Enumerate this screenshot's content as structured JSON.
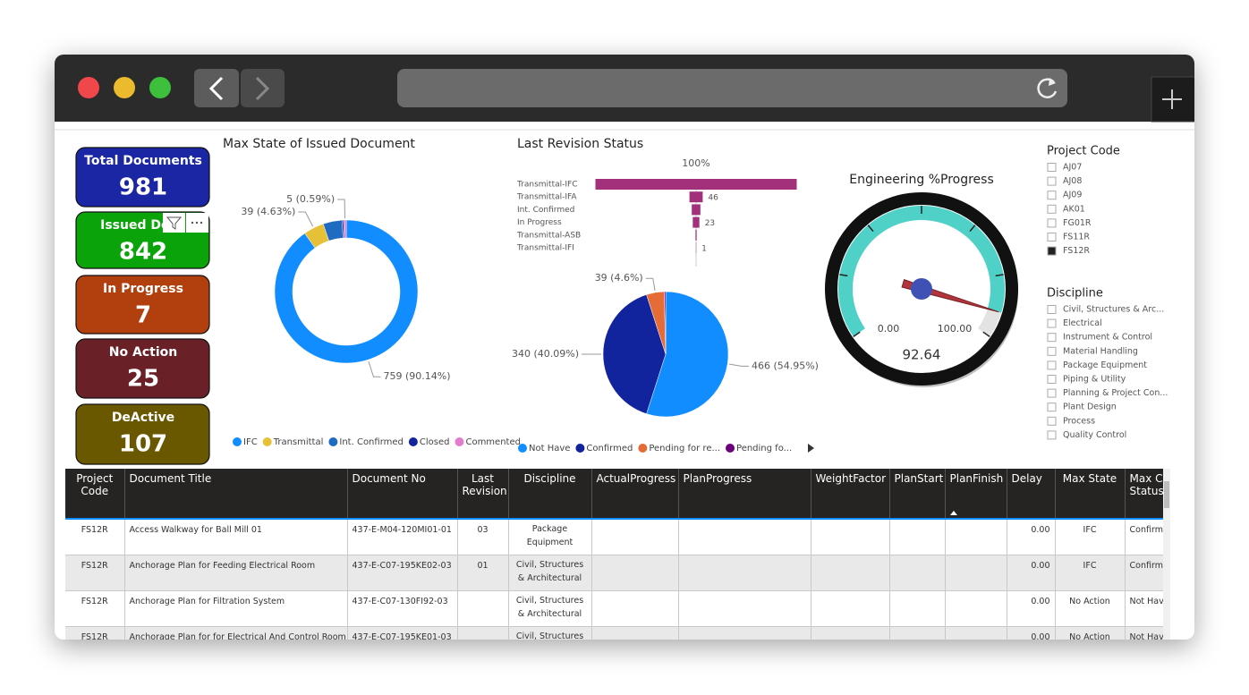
{
  "cards": [
    {
      "label": "Total Documents",
      "value": 981,
      "color": "#1a26a3"
    },
    {
      "label": "Issued Docu",
      "value": 842,
      "color": "#0aa40a"
    },
    {
      "label": "In Progress",
      "value": 7,
      "color": "#b23f0e"
    },
    {
      "label": "No Action",
      "value": 25,
      "color": "#6a2027"
    },
    {
      "label": "DeActive",
      "value": 107,
      "color": "#6a5800"
    }
  ],
  "chart_data": [
    {
      "type": "donut",
      "title": "Max State of Issued Document",
      "categories": [
        "IFC",
        "Transmittal",
        "Int. Confirmed",
        "Closed",
        "Commented"
      ],
      "values": [
        759,
        39,
        36,
        3,
        5
      ],
      "value_labels": [
        "759 (90.14%)",
        "39 (4.63%)",
        null,
        null,
        "5 (0.59%)"
      ],
      "colors": [
        "#118dff",
        "#e6c138",
        "#1f6bc1",
        "#12239e",
        "#e47ccd"
      ]
    },
    {
      "type": "funnel",
      "title": "Last Revision Status",
      "categories": [
        "Transmittal-IFC",
        "Transmittal-IFA",
        "Int. Confirmed",
        "In Progress",
        "Transmittal-ASB",
        "Transmittal-IFI"
      ],
      "values": [
        700,
        46,
        30,
        23,
        4,
        1
      ],
      "value_labels": [
        null,
        "46",
        null,
        "23",
        null,
        "1"
      ],
      "annotations": [
        "100%"
      ],
      "color": "#a3307a"
    },
    {
      "type": "pie",
      "categories": [
        "Not Have",
        "Confirmed",
        "Pending for re...",
        "Pending fo..."
      ],
      "values": [
        466,
        340,
        39,
        3
      ],
      "value_labels": [
        "466 (54.95%)",
        "340 (40.09%)",
        "39 (4.6%)",
        null
      ],
      "colors": [
        "#118dff",
        "#12239e",
        "#e66c37",
        "#6b007b"
      ]
    },
    {
      "type": "gauge",
      "title": "Engineering %Progress",
      "value": 92.64,
      "min": {
        "value": 0,
        "label": "0.00"
      },
      "max": {
        "value": 100,
        "label": "100.00"
      },
      "color": "#4fd1c8"
    }
  ],
  "slicers": [
    {
      "title": "Project Code",
      "items": [
        {
          "label": "AJ07",
          "checked": false
        },
        {
          "label": "AJ08",
          "checked": false
        },
        {
          "label": "AJ09",
          "checked": false
        },
        {
          "label": "AK01",
          "checked": false
        },
        {
          "label": "FG01R",
          "checked": false
        },
        {
          "label": "FS11R",
          "checked": false
        },
        {
          "label": "FS12R",
          "checked": true
        }
      ]
    },
    {
      "title": "Discipline",
      "items": [
        {
          "label": "Civil, Structures & Arc...",
          "checked": false
        },
        {
          "label": "Electrical",
          "checked": false
        },
        {
          "label": "Instrument & Control",
          "checked": false
        },
        {
          "label": "Material Handling",
          "checked": false
        },
        {
          "label": "Package Equipment",
          "checked": false
        },
        {
          "label": "Piping & Utility",
          "checked": false
        },
        {
          "label": "Planning & Project Con...",
          "checked": false
        },
        {
          "label": "Plant Design",
          "checked": false
        },
        {
          "label": "Process",
          "checked": false
        },
        {
          "label": "Quality Control",
          "checked": false
        }
      ]
    }
  ],
  "table": {
    "columns": [
      "Project Code",
      "Document Title",
      "Document No",
      "Last Revision",
      "Discipline",
      "ActualProgress",
      "PlanProgress",
      "WeightFactor",
      "PlanStart",
      "PlanFinish",
      "Delay",
      "Max State",
      "Max Current Status"
    ],
    "rows": [
      [
        "FS12R",
        "Access Walkway for Ball Mill 01",
        "437-E-M04-120MI01-01",
        "03",
        "Package Equipment",
        null,
        null,
        null,
        null,
        null,
        "0.00",
        "IFC",
        "Confirmed"
      ],
      [
        "FS12R",
        "Anchorage Plan for Feeding Electrical Room",
        "437-E-C07-195KE02-03",
        "01",
        "Civil, Structures & Architectural",
        null,
        null,
        null,
        null,
        null,
        "0.00",
        "IFC",
        "Confirmed"
      ],
      [
        "FS12R",
        "Anchorage Plan for Filtration System",
        "437-E-C07-130FI92-03",
        null,
        "Civil, Structures & Architectural",
        null,
        null,
        null,
        null,
        null,
        "0.00",
        "No Action",
        "Not Have"
      ],
      [
        "FS12R",
        "Anchorage Plan for for Electrical And Control Room",
        "437-E-C07-195KE01-03",
        null,
        "Civil, Structures & Architectural",
        null,
        null,
        null,
        null,
        null,
        "0.00",
        "No Action",
        "Not Have"
      ]
    ]
  }
}
